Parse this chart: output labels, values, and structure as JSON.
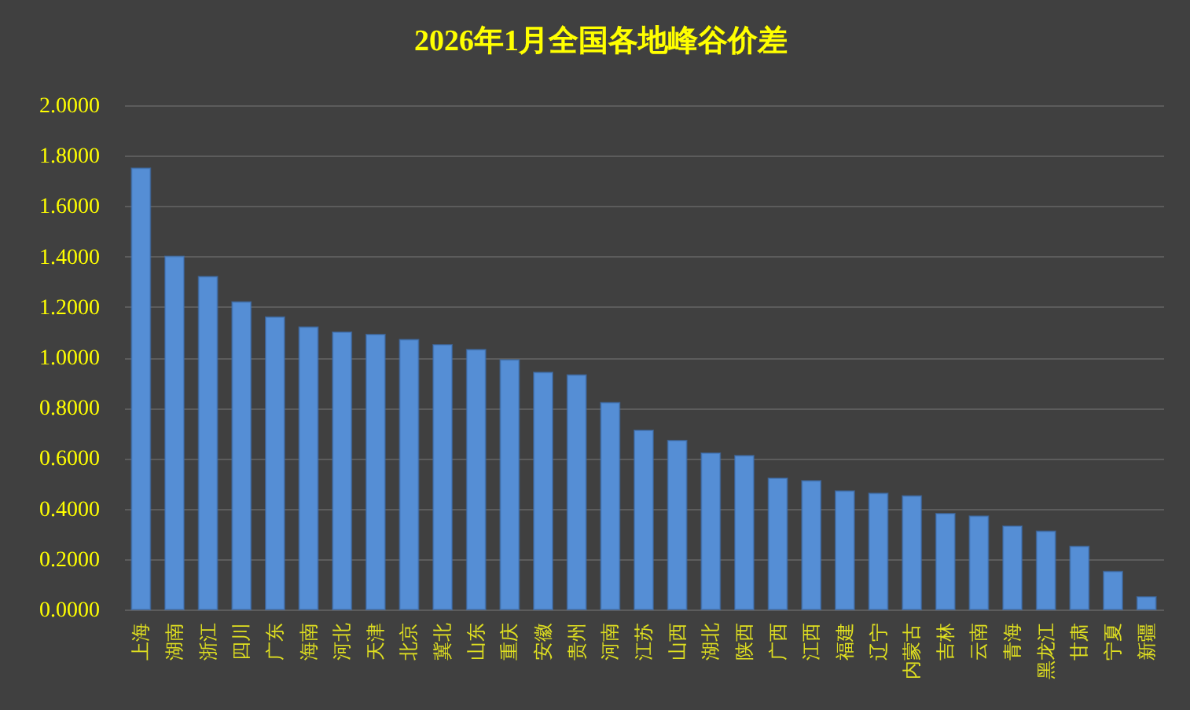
{
  "chart_data": {
    "type": "bar",
    "title": "2026年1月全国各地峰谷价差",
    "categories": [
      "上海",
      "湖南",
      "浙江",
      "四川",
      "广东",
      "海南",
      "河北",
      "天津",
      "北京",
      "冀北",
      "山东",
      "重庆",
      "安徽",
      "贵州",
      "河南",
      "江苏",
      "山西",
      "湖北",
      "陕西",
      "广西",
      "江西",
      "福建",
      "辽宁",
      "内蒙古",
      "吉林",
      "云南",
      "青海",
      "黑龙江",
      "甘肃",
      "宁夏",
      "新疆"
    ],
    "values": [
      1.75,
      1.4,
      1.32,
      1.22,
      1.16,
      1.12,
      1.1,
      1.09,
      1.07,
      1.05,
      1.03,
      0.99,
      0.94,
      0.93,
      0.82,
      0.71,
      0.67,
      0.62,
      0.61,
      0.52,
      0.51,
      0.47,
      0.46,
      0.45,
      0.38,
      0.37,
      0.33,
      0.31,
      0.25,
      0.15,
      0.05
    ],
    "color": "#558ed5",
    "ylim": [
      0,
      2
    ],
    "yticks": [
      {
        "value": 0,
        "label": "0.0000"
      },
      {
        "value": 0.2,
        "label": "0.2000"
      },
      {
        "value": 0.4,
        "label": "0.4000"
      },
      {
        "value": 0.6,
        "label": "0.6000"
      },
      {
        "value": 0.8,
        "label": "0.8000"
      },
      {
        "value": 1,
        "label": "1.0000"
      },
      {
        "value": 1.2,
        "label": "1.2000"
      },
      {
        "value": 1.4,
        "label": "1.4000"
      },
      {
        "value": 1.6,
        "label": "1.6000"
      },
      {
        "value": 1.8,
        "label": "1.8000"
      },
      {
        "value": 2,
        "label": "2.0000"
      }
    ],
    "grid": "y"
  }
}
